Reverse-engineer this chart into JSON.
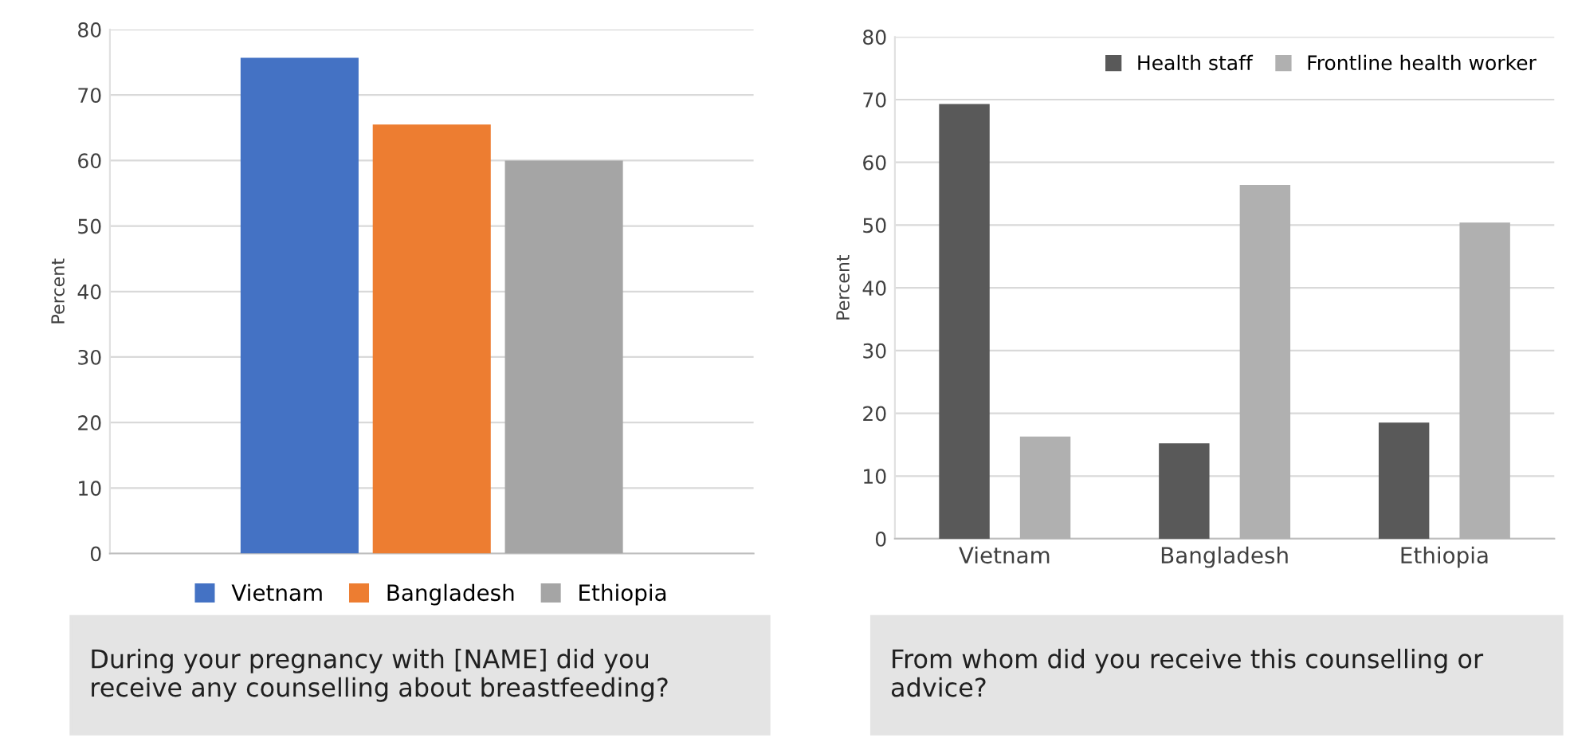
{
  "chart_data": [
    {
      "type": "bar",
      "title": "During your pregnancy with [NAME] did you receive any counselling about breastfeeding?",
      "ylabel": "Percent",
      "categories": [
        null
      ],
      "series": [
        {
          "name": "Vietnam",
          "color": "#4472c4",
          "values": [
            75.7
          ]
        },
        {
          "name": "Bangladesh",
          "color": "#ed7d31",
          "values": [
            65.5
          ]
        },
        {
          "name": "Ethiopia",
          "color": "#a5a5a5",
          "values": [
            60.0
          ]
        }
      ],
      "ylim": [
        0,
        80
      ],
      "yticks": [
        0,
        10,
        20,
        30,
        40,
        50,
        60,
        70,
        80
      ],
      "grid": "y",
      "legend": "bottom",
      "tick_labels": "y"
    },
    {
      "type": "bar",
      "title": "From whom did you receive this counselling or advice?",
      "ylabel": "Percent",
      "categories": [
        "Vietnam",
        "Bangladesh",
        "Ethiopia"
      ],
      "series": [
        {
          "name": "Health staff",
          "color": "#595959",
          "values": [
            69.3,
            15.2,
            18.5
          ]
        },
        {
          "name": "Frontline health worker",
          "color": "#b0b0b0",
          "values": [
            16.3,
            56.4,
            50.4
          ]
        }
      ],
      "ylim": [
        0,
        80
      ],
      "yticks": [
        0,
        10,
        20,
        30,
        40,
        50,
        60,
        70,
        80
      ],
      "grid": "y",
      "legend": "top right"
    }
  ]
}
